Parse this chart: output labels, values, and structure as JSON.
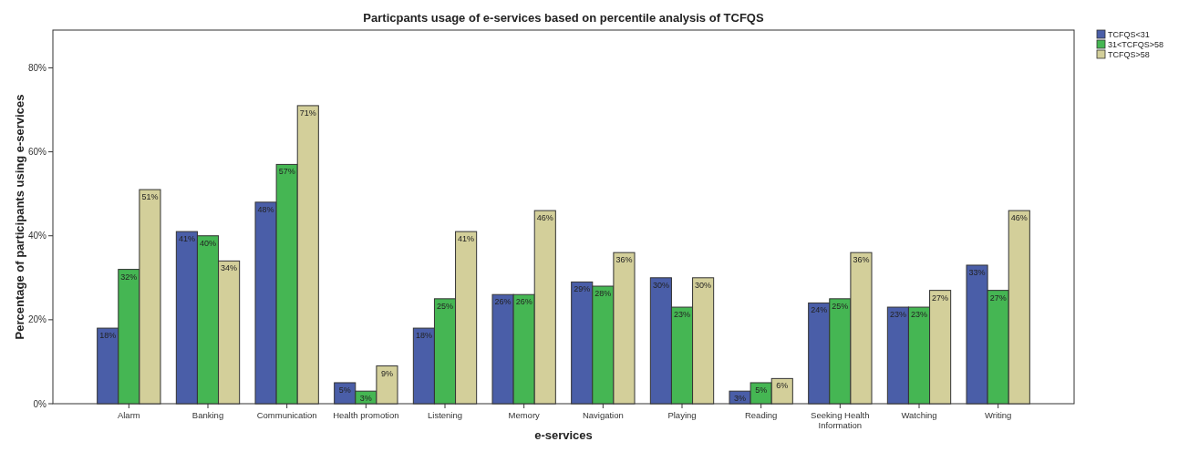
{
  "chart_data": {
    "type": "bar",
    "title": "Particpants usage of e-services based on percentile analysis of TCFQS",
    "xlabel": "e-services",
    "ylabel": "Percentage of participants using e-services",
    "categories": [
      "Alarm",
      "Banking",
      "Communication",
      "Health promotion",
      "Listening",
      "Memory",
      "Navigation",
      "Playing",
      "Reading",
      "Seeking Health Information",
      "Watching",
      "Writing"
    ],
    "series": [
      {
        "name": "TCFQS<31",
        "color": "#4a5ea8",
        "values": [
          18,
          41,
          48,
          5,
          18,
          26,
          29,
          30,
          3,
          24,
          23,
          33
        ],
        "value_labels": [
          "18%",
          "41%",
          "48%",
          "5%",
          "18%",
          "26%",
          "29%",
          "30%",
          "3%",
          "24%",
          "23%",
          "33%"
        ]
      },
      {
        "name": "31<TCFQS>58",
        "color": "#45b653",
        "values": [
          32,
          40,
          57,
          3,
          25,
          26,
          28,
          23,
          5,
          25,
          23,
          27
        ],
        "value_labels": [
          "32%",
          "40%",
          "57%",
          "3%",
          "25%",
          "26%",
          "28%",
          "23%",
          "5%",
          "25%",
          "23%",
          "27%"
        ]
      },
      {
        "name": "TCFQS>58",
        "color": "#d3cf9a",
        "values": [
          51,
          34,
          71,
          9,
          41,
          46,
          36,
          30,
          6,
          36,
          27,
          46
        ],
        "value_labels": [
          "51%",
          "34%",
          "71%",
          "9%",
          "41%",
          "46%",
          "36%",
          "30%",
          "6%",
          "36%",
          "27%",
          "46%"
        ]
      }
    ],
    "ylim": [
      0,
      89
    ],
    "yticks": [
      {
        "value": 0,
        "label": "0%"
      },
      {
        "value": 20,
        "label": "20%"
      },
      {
        "value": 40,
        "label": "40%"
      },
      {
        "value": 60,
        "label": "60%"
      },
      {
        "value": 80,
        "label": "80%"
      }
    ],
    "grid": false,
    "legend": "top right"
  }
}
